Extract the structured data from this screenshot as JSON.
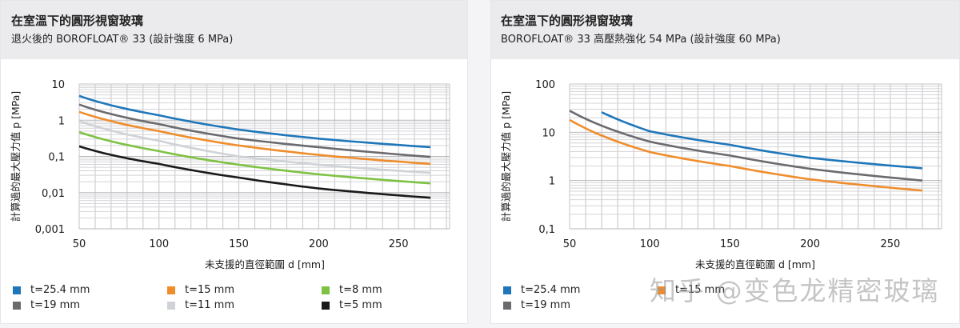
{
  "panels": [
    {
      "title": "在室溫下的圓形視窗玻璃",
      "subtitle": "退火後的 BOROFLOAT® 33 (設計強度 6 MPa)",
      "legend": [
        {
          "label": "t=25.4 mm",
          "color": "#1f77b9"
        },
        {
          "label": "t=19 mm",
          "color": "#6b6b6f"
        },
        {
          "label": "t=15 mm",
          "color": "#ef8d2c"
        },
        {
          "label": "t=11 mm",
          "color": "#cfd2d6"
        },
        {
          "label": "t=8 mm",
          "color": "#7dc242"
        },
        {
          "label": "t=5 mm",
          "color": "#1a1a1a"
        }
      ]
    },
    {
      "title": "在室溫下的圓形視窗玻璃",
      "subtitle": "BOROFLOAT® 33 高壓熱強化 54 MPa (設計強度 60 MPa)",
      "legend": [
        {
          "label": "t=25.4 mm",
          "color": "#1f77b9"
        },
        {
          "label": "t=19 mm",
          "color": "#6b6b6f"
        },
        {
          "label": "t=15 mm",
          "color": "#ef8d2c"
        }
      ]
    }
  ],
  "watermark": "知乎 @变色龙精密玻璃",
  "chart_data": [
    {
      "type": "line",
      "title": "在室溫下的圓形視窗玻璃 — 退火後的 BOROFLOAT® 33 (設計強度 6 MPa)",
      "xlabel": "未支援的直徑範圍 d [mm]",
      "ylabel": "計算過的最大壓力值 p [MPa]",
      "xlim": [
        50,
        282
      ],
      "ylim": [
        0.001,
        10
      ],
      "yscale": "log",
      "xticks": [
        50,
        100,
        150,
        200,
        250
      ],
      "yticks": [
        "10",
        "1",
        "0,1",
        "0,01",
        "0,001"
      ],
      "grid": true,
      "legend_position": "bottom",
      "x": [
        50,
        100,
        150,
        200,
        270
      ],
      "series": [
        {
          "name": "t=25.4 mm",
          "color": "#1f77b9",
          "values": [
            4.7,
            1.37,
            0.55,
            0.31,
            0.18
          ]
        },
        {
          "name": "t=19 mm",
          "color": "#6b6b6f",
          "values": [
            2.7,
            0.78,
            0.31,
            0.18,
            0.097
          ]
        },
        {
          "name": "t=15 mm",
          "color": "#ef8d2c",
          "values": [
            1.7,
            0.5,
            0.2,
            0.11,
            0.062
          ]
        },
        {
          "name": "t=11 mm",
          "color": "#cfd2d6",
          "values": [
            0.95,
            0.27,
            0.1,
            0.059,
            0.035
          ]
        },
        {
          "name": "t=8 mm",
          "color": "#7dc242",
          "values": [
            0.47,
            0.14,
            0.059,
            0.032,
            0.018
          ]
        },
        {
          "name": "t=5 mm",
          "color": "#1a1a1a",
          "values": [
            0.19,
            0.062,
            0.026,
            0.013,
            0.0072
          ]
        }
      ]
    },
    {
      "type": "line",
      "title": "在室溫下的圓形視窗玻璃 — BOROFLOAT® 33 高壓熱強化 54 MPa (設計強度 60 MPa)",
      "xlabel": "未支援的直徑範圍 d [mm]",
      "ylabel": "計算過的最大壓力值 p [MPa]",
      "xlim": [
        50,
        282
      ],
      "ylim": [
        0.1,
        100
      ],
      "yscale": "log",
      "xticks": [
        50,
        100,
        150,
        200,
        250
      ],
      "yticks": [
        "100",
        "10",
        "1",
        "0,1"
      ],
      "grid": true,
      "legend_position": "bottom",
      "series": [
        {
          "name": "t=25.4 mm",
          "color": "#1f77b9",
          "x": [
            70,
            100,
            150,
            200,
            270
          ],
          "values": [
            26,
            10.5,
            5.5,
            2.95,
            1.8
          ]
        },
        {
          "name": "t=19 mm",
          "color": "#6b6b6f",
          "x": [
            50,
            100,
            150,
            200,
            270
          ],
          "values": [
            28,
            6.4,
            3.3,
            1.75,
            1.0
          ]
        },
        {
          "name": "t=15 mm",
          "color": "#ef8d2c",
          "x": [
            50,
            100,
            150,
            200,
            270
          ],
          "values": [
            18,
            3.9,
            2.0,
            1.06,
            0.62
          ]
        }
      ]
    }
  ]
}
